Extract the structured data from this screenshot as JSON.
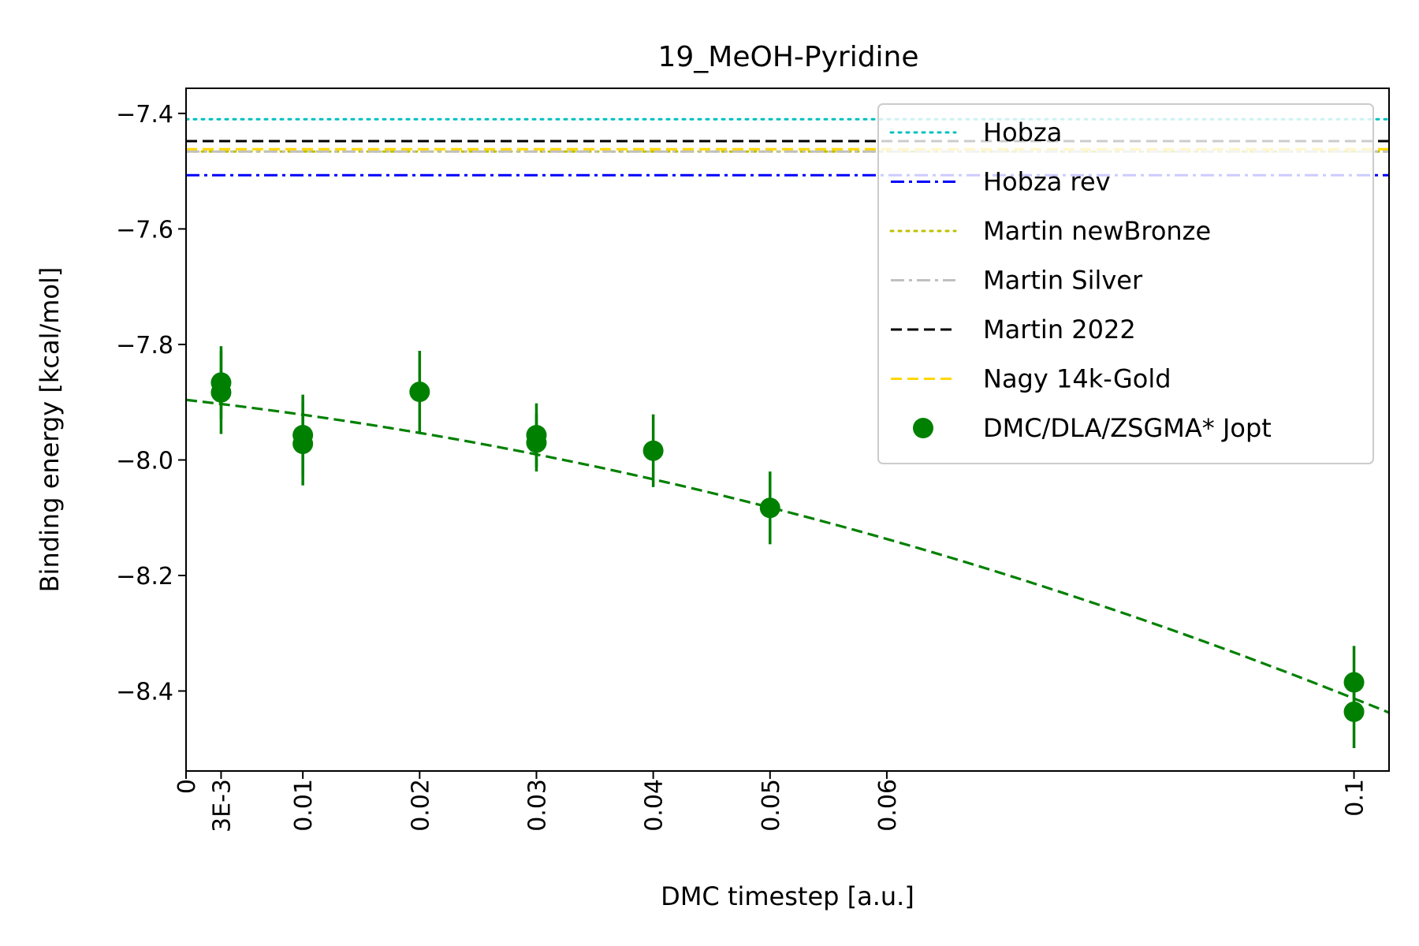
{
  "chart_data": {
    "type": "scatter",
    "title": "19_MeOH-Pyridine",
    "xlabel": "DMC timestep [a.u.]",
    "ylabel": "Binding energy [kcal/mol]",
    "xlim": [
      0,
      0.103
    ],
    "ylim": [
      -8.5385,
      -7.3565
    ],
    "x_ticks": [
      {
        "value": 0,
        "label": "0"
      },
      {
        "value": 0.003,
        "label": "3E-3"
      },
      {
        "value": 0.01,
        "label": "0.01"
      },
      {
        "value": 0.02,
        "label": "0.02"
      },
      {
        "value": 0.03,
        "label": "0.03"
      },
      {
        "value": 0.04,
        "label": "0.04"
      },
      {
        "value": 0.05,
        "label": "0.05"
      },
      {
        "value": 0.06,
        "label": "0.06"
      },
      {
        "value": 0.1,
        "label": "0.1"
      }
    ],
    "y_ticks": [
      {
        "value": -7.4,
        "label": "−7.4"
      },
      {
        "value": -7.6,
        "label": "−7.6"
      },
      {
        "value": -7.8,
        "label": "−7.8"
      },
      {
        "value": -8.0,
        "label": "−8.0"
      },
      {
        "value": -8.2,
        "label": "−8.2"
      },
      {
        "value": -8.4,
        "label": "−8.4"
      }
    ],
    "grid": false,
    "legend_position": "top-right",
    "reference_lines": [
      {
        "name": "Hobza",
        "value": -7.41,
        "color": "#00BFBF",
        "style": "dotted"
      },
      {
        "name": "Hobza rev",
        "value": -7.507,
        "color": "#0000FF",
        "style": "dashdot"
      },
      {
        "name": "Martin newBronze",
        "value": -7.466,
        "color": "#BFBF00",
        "style": "dotted"
      },
      {
        "name": "Martin Silver",
        "value": -7.466,
        "color": "#C0C0C0",
        "style": "dashdot"
      },
      {
        "name": "Martin 2022",
        "value": -7.448,
        "color": "#000000",
        "style": "dashed"
      },
      {
        "name": "Nagy 14k-Gold",
        "value": -7.462,
        "color": "#FFD700",
        "style": "dashed"
      }
    ],
    "series": [
      {
        "name": "DMC/DLA/ZSGMA* Jopt",
        "color": "#008000",
        "points": [
          {
            "x": 0.003,
            "y": -7.866,
            "err": 0.063
          },
          {
            "x": 0.003,
            "y": -7.883,
            "err": 0.072
          },
          {
            "x": 0.01,
            "y": -7.957,
            "err": 0.07
          },
          {
            "x": 0.01,
            "y": -7.972,
            "err": 0.072
          },
          {
            "x": 0.02,
            "y": -7.882,
            "err": 0.071
          },
          {
            "x": 0.03,
            "y": -7.957,
            "err": 0.055
          },
          {
            "x": 0.03,
            "y": -7.97,
            "err": 0.05
          },
          {
            "x": 0.04,
            "y": -7.984,
            "err": 0.063
          },
          {
            "x": 0.05,
            "y": -8.083,
            "err": 0.063
          },
          {
            "x": 0.1,
            "y": -8.385,
            "err": 0.063
          },
          {
            "x": 0.1,
            "y": -8.436,
            "err": 0.063
          }
        ]
      }
    ],
    "fit_curve": {
      "color": "#008000",
      "style": "dashed",
      "coefficients": [
        -7.896,
        -2.28,
        -28.9
      ]
    }
  }
}
